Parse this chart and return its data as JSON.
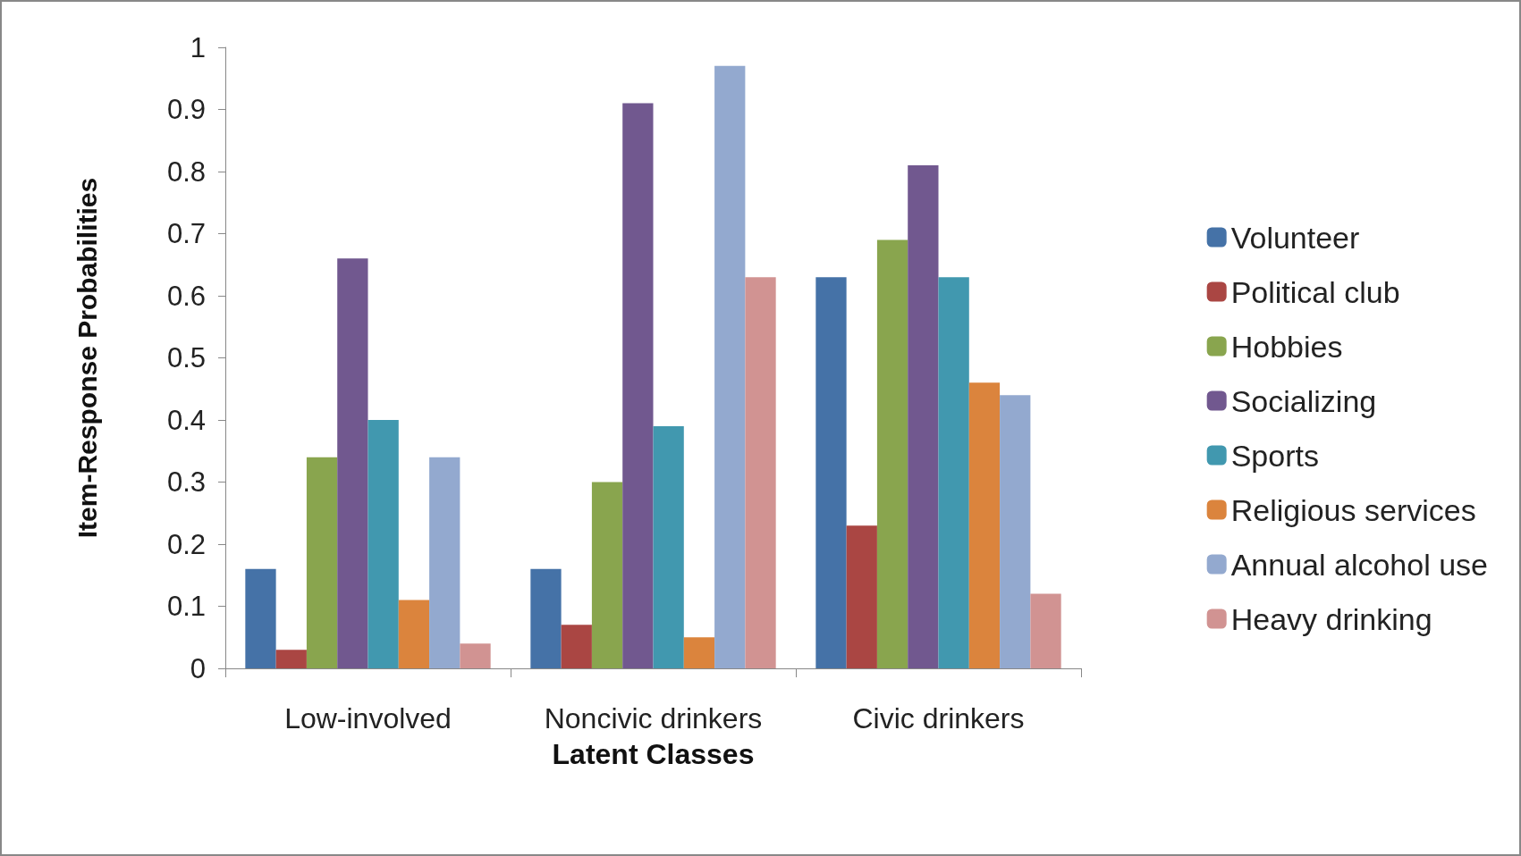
{
  "chart_data": {
    "type": "bar",
    "xlabel": "Latent Classes",
    "ylabel": "Item-Response Probabilities",
    "categories": [
      "Low-involved",
      "Noncivic drinkers",
      "Civic drinkers"
    ],
    "series": [
      {
        "name": "Volunteer",
        "color": "#4572a7",
        "values": [
          0.16,
          0.16,
          0.63
        ]
      },
      {
        "name": "Political club",
        "color": "#aa4643",
        "values": [
          0.03,
          0.07,
          0.23
        ]
      },
      {
        "name": "Hobbies",
        "color": "#89a54e",
        "values": [
          0.34,
          0.3,
          0.69
        ]
      },
      {
        "name": "Socializing",
        "color": "#71588f",
        "values": [
          0.66,
          0.91,
          0.81
        ]
      },
      {
        "name": "Sports",
        "color": "#4198af",
        "values": [
          0.4,
          0.39,
          0.63
        ]
      },
      {
        "name": "Religious services",
        "color": "#db843d",
        "values": [
          0.11,
          0.05,
          0.46
        ]
      },
      {
        "name": "Annual alcohol use",
        "color": "#93a9cf",
        "values": [
          0.34,
          0.97,
          0.44
        ]
      },
      {
        "name": "Heavy drinking",
        "color": "#d19392",
        "values": [
          0.04,
          0.63,
          0.12
        ]
      }
    ],
    "ylim": [
      0,
      1
    ],
    "yticks": [
      0,
      0.1,
      0.2,
      0.3,
      0.4,
      0.5,
      0.6,
      0.7,
      0.8,
      0.9,
      1
    ],
    "grid": false,
    "legend": "right"
  }
}
